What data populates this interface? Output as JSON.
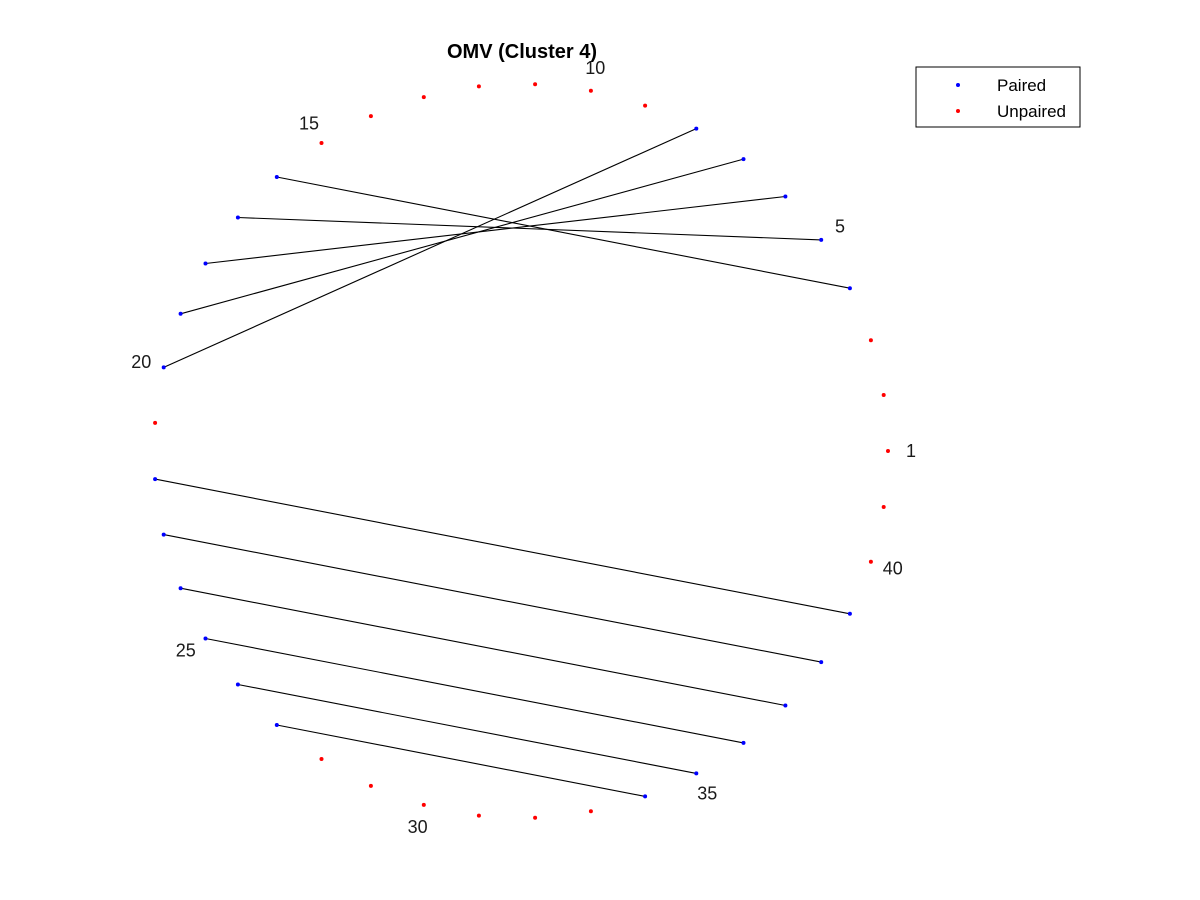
{
  "chart_data": {
    "type": "scatter",
    "title": "OMV (Cluster 4)",
    "xlabel": "",
    "ylabel": "",
    "grid": false,
    "legend_position": "top-right",
    "node_count": 41,
    "labeled_nodes": [
      {
        "index": 1,
        "label": "1"
      },
      {
        "index": 5,
        "label": "5"
      },
      {
        "index": 10,
        "label": "10"
      },
      {
        "index": 15,
        "label": "15"
      },
      {
        "index": 20,
        "label": "20"
      },
      {
        "index": 25,
        "label": "25"
      },
      {
        "index": 30,
        "label": "30"
      },
      {
        "index": 35,
        "label": "35"
      },
      {
        "index": 40,
        "label": "40"
      }
    ],
    "series": [
      {
        "name": "Paired",
        "color": "#0000ff",
        "nodes": [
          4,
          5,
          6,
          7,
          8,
          16,
          17,
          18,
          19,
          20,
          22,
          23,
          24,
          25,
          26,
          27,
          34,
          35,
          36,
          37,
          38,
          39
        ]
      },
      {
        "name": "Unpaired",
        "color": "#ff0000",
        "nodes": [
          1,
          2,
          3,
          9,
          10,
          11,
          12,
          13,
          14,
          15,
          21,
          28,
          29,
          30,
          31,
          32,
          33,
          40,
          41
        ]
      }
    ],
    "pairs": [
      [
        4,
        16
      ],
      [
        5,
        17
      ],
      [
        6,
        18
      ],
      [
        7,
        19
      ],
      [
        8,
        20
      ],
      [
        22,
        39
      ],
      [
        23,
        38
      ],
      [
        24,
        37
      ],
      [
        25,
        36
      ],
      [
        26,
        35
      ],
      [
        27,
        34
      ]
    ]
  }
}
